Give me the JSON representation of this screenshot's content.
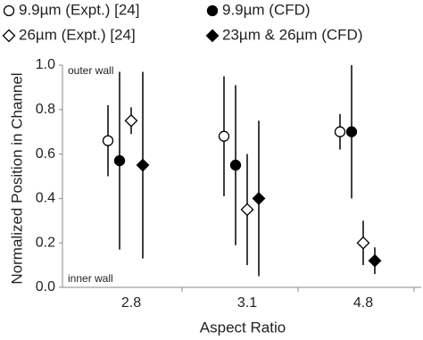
{
  "chart_data": {
    "type": "scatter",
    "categories": [
      "2.8",
      "3.1",
      "4.8"
    ],
    "x_label": "Aspect Ratio",
    "y_label": "Normalized Position in Channel",
    "ylim": [
      0,
      1
    ],
    "yticks": [
      {
        "value": 0,
        "label": "0.0"
      },
      0.2,
      0.4,
      0.6,
      0.8,
      {
        "value": 1,
        "label": "1.0"
      }
    ],
    "annotations": [
      "outer wall",
      "inner wall"
    ],
    "series": [
      {
        "name": "9.9µm (Expt.) [24]",
        "color": "#000000",
        "marker": "circle",
        "filled": false,
        "values": [
          0.66,
          0.68,
          0.7
        ],
        "errors": [
          0.16,
          0.27,
          0.08
        ]
      },
      {
        "name": "9.9µm (CFD)",
        "color": "#000000",
        "marker": "circle",
        "filled": true,
        "values": [
          0.57,
          0.55,
          0.7
        ],
        "errors": [
          0.4,
          0.36,
          0.3
        ]
      },
      {
        "name": "26µm (Expt.) [24]",
        "color": "#000000",
        "marker": "diamond",
        "filled": false,
        "values": [
          0.75,
          0.35,
          0.2
        ],
        "errors": [
          0.06,
          0.25,
          0.1
        ]
      },
      {
        "name": "23µm & 26µm (CFD)",
        "color": "#000000",
        "marker": "diamond",
        "filled": true,
        "values": [
          0.55,
          0.4,
          0.12
        ],
        "errors": [
          0.42,
          0.35,
          0.06
        ]
      }
    ]
  }
}
